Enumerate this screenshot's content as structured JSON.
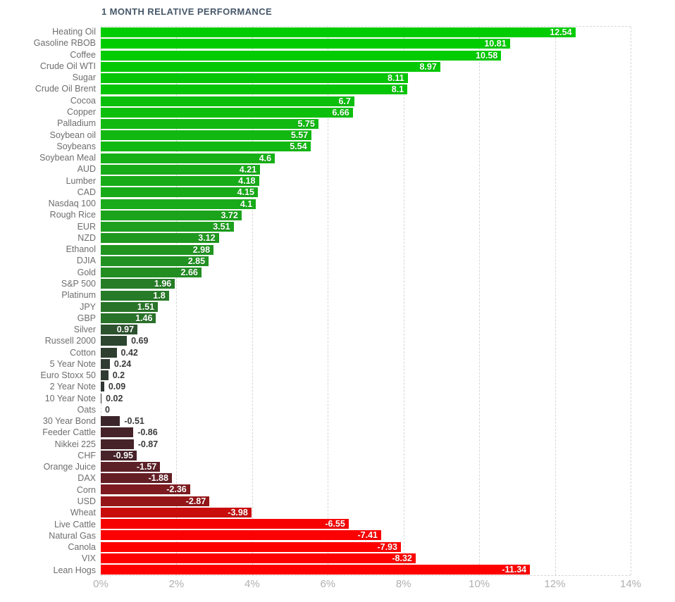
{
  "title": "1 MONTH RELATIVE PERFORMANCE",
  "colors": {
    "background": "#ffffff",
    "title": "#47586a",
    "category_label": "#6e6e6e",
    "axis_label": "#b0b0b4",
    "grid": "#d6d6d6",
    "value_inside": "#ffffff",
    "value_outside": "#3b3b3b",
    "positive_max": "#00cc00",
    "negative_max": "#ff0000"
  },
  "chart_data": {
    "type": "bar",
    "orientation": "horizontal",
    "title": "1 MONTH RELATIVE PERFORMANCE",
    "xlabel": "",
    "ylabel": "",
    "x_axis_unit": "%",
    "x_range": [
      0,
      14
    ],
    "x_ticks": [
      "0%",
      "2%",
      "4%",
      "6%",
      "8%",
      "10%",
      "12%",
      "14%"
    ],
    "grid": true,
    "bars_start_at_zero_left": true,
    "items": [
      {
        "label": "Heating Oil",
        "value": 12.54,
        "display": "12.54",
        "color": "#00cc00",
        "value_label_inside": true
      },
      {
        "label": "Gasoline RBOB",
        "value": 10.81,
        "display": "10.81",
        "color": "#00cc00",
        "value_label_inside": true
      },
      {
        "label": "Coffee",
        "value": 10.58,
        "display": "10.58",
        "color": "#01cb01",
        "value_label_inside": true
      },
      {
        "label": "Crude Oil WTI",
        "value": 8.97,
        "display": "8.97",
        "color": "#04c804",
        "value_label_inside": true
      },
      {
        "label": "Sugar",
        "value": 8.11,
        "display": "8.11",
        "color": "#06c506",
        "value_label_inside": true
      },
      {
        "label": "Crude Oil Brent",
        "value": 8.1,
        "display": "8.1",
        "color": "#06c506",
        "value_label_inside": true
      },
      {
        "label": "Cocoa",
        "value": 6.7,
        "display": "6.7",
        "color": "#0cbf0c",
        "value_label_inside": true
      },
      {
        "label": "Copper",
        "value": 6.66,
        "display": "6.66",
        "color": "#0cbf0c",
        "value_label_inside": true
      },
      {
        "label": "Palladium",
        "value": 5.75,
        "display": "5.75",
        "color": "#11b911",
        "value_label_inside": true
      },
      {
        "label": "Soybean oil",
        "value": 5.57,
        "display": "5.57",
        "color": "#12b812",
        "value_label_inside": true
      },
      {
        "label": "Soybeans",
        "value": 5.54,
        "display": "5.54",
        "color": "#12b812",
        "value_label_inside": true
      },
      {
        "label": "Soybean Meal",
        "value": 4.6,
        "display": "4.6",
        "color": "#16b016",
        "value_label_inside": true
      },
      {
        "label": "AUD",
        "value": 4.21,
        "display": "4.21",
        "color": "#18ac18",
        "value_label_inside": true
      },
      {
        "label": "Lumber",
        "value": 4.18,
        "display": "4.18",
        "color": "#18ac18",
        "value_label_inside": true
      },
      {
        "label": "CAD",
        "value": 4.15,
        "display": "4.15",
        "color": "#18ab18",
        "value_label_inside": true
      },
      {
        "label": "Nasdaq 100",
        "value": 4.1,
        "display": "4.1",
        "color": "#19ab19",
        "value_label_inside": true
      },
      {
        "label": "Rough Rice",
        "value": 3.72,
        "display": "3.72",
        "color": "#1ba41b",
        "value_label_inside": true
      },
      {
        "label": "EUR",
        "value": 3.51,
        "display": "3.51",
        "color": "#1da01d",
        "value_label_inside": true
      },
      {
        "label": "NZD",
        "value": 3.12,
        "display": "3.12",
        "color": "#1f981f",
        "value_label_inside": true
      },
      {
        "label": "Ethanol",
        "value": 2.98,
        "display": "2.98",
        "color": "#209520",
        "value_label_inside": true
      },
      {
        "label": "DJIA",
        "value": 2.85,
        "display": "2.85",
        "color": "#219221",
        "value_label_inside": true
      },
      {
        "label": "Gold",
        "value": 2.66,
        "display": "2.66",
        "color": "#228e22",
        "value_label_inside": true
      },
      {
        "label": "S&P 500",
        "value": 1.96,
        "display": "1.96",
        "color": "#267d26",
        "value_label_inside": true
      },
      {
        "label": "Platinum",
        "value": 1.8,
        "display": "1.8",
        "color": "#277a27",
        "value_label_inside": true
      },
      {
        "label": "JPY",
        "value": 1.51,
        "display": "1.51",
        "color": "#287328",
        "value_label_inside": true
      },
      {
        "label": "GBP",
        "value": 1.46,
        "display": "1.46",
        "color": "#297229",
        "value_label_inside": true
      },
      {
        "label": "Silver",
        "value": 0.97,
        "display": "0.97",
        "color": "#2c532e",
        "value_label_inside": true
      },
      {
        "label": "Russell 2000",
        "value": 0.69,
        "display": "0.69",
        "color": "#2c4630",
        "value_label_inside": false
      },
      {
        "label": "Cotton",
        "value": 0.42,
        "display": "0.42",
        "color": "#2e3f31",
        "value_label_inside": false
      },
      {
        "label": "5 Year Note",
        "value": 0.24,
        "display": "0.24",
        "color": "#2f3b32",
        "value_label_inside": false
      },
      {
        "label": "Euro Stoxx 50",
        "value": 0.2,
        "display": "0.2",
        "color": "#2f3a32",
        "value_label_inside": false
      },
      {
        "label": "2 Year Note",
        "value": 0.09,
        "display": "0.09",
        "color": "#303634",
        "value_label_inside": false
      },
      {
        "label": "10 Year Note",
        "value": 0.02,
        "display": "0.02",
        "color": "#313434",
        "value_label_inside": false
      },
      {
        "label": "Oats",
        "value": 0,
        "display": "0",
        "color": "#313434",
        "value_label_inside": false
      },
      {
        "label": "30 Year Bond",
        "value": -0.51,
        "display": "-0.51",
        "color": "#3b252a",
        "value_label_inside": false
      },
      {
        "label": "Feeder Cattle",
        "value": -0.86,
        "display": "-0.86",
        "color": "#452329",
        "value_label_inside": false
      },
      {
        "label": "Nikkei 225",
        "value": -0.87,
        "display": "-0.87",
        "color": "#452329",
        "value_label_inside": false
      },
      {
        "label": "CHF",
        "value": -0.95,
        "display": "-0.95",
        "color": "#472329",
        "value_label_inside": true
      },
      {
        "label": "Orange Juice",
        "value": -1.57,
        "display": "-1.57",
        "color": "#5c2127",
        "value_label_inside": true
      },
      {
        "label": "DAX",
        "value": -1.88,
        "display": "-1.88",
        "color": "#641f25",
        "value_label_inside": true
      },
      {
        "label": "Corn",
        "value": -2.36,
        "display": "-2.36",
        "color": "#7d1b20",
        "value_label_inside": true
      },
      {
        "label": "USD",
        "value": -2.87,
        "display": "-2.87",
        "color": "#951619",
        "value_label_inside": true
      },
      {
        "label": "Wheat",
        "value": -3.98,
        "display": "-3.98",
        "color": "#c90d0d",
        "value_label_inside": true
      },
      {
        "label": "Live Cattle",
        "value": -6.55,
        "display": "-6.55",
        "color": "#f70202",
        "value_label_inside": true
      },
      {
        "label": "Natural Gas",
        "value": -7.41,
        "display": "-7.41",
        "color": "#fb0101",
        "value_label_inside": true
      },
      {
        "label": "Canola",
        "value": -7.93,
        "display": "-7.93",
        "color": "#fd0000",
        "value_label_inside": true
      },
      {
        "label": "VIX",
        "value": -8.32,
        "display": "-8.32",
        "color": "#fe0000",
        "value_label_inside": true
      },
      {
        "label": "Lean Hogs",
        "value": -11.34,
        "display": "-11.34",
        "color": "#ff0000",
        "value_label_inside": true
      }
    ]
  }
}
